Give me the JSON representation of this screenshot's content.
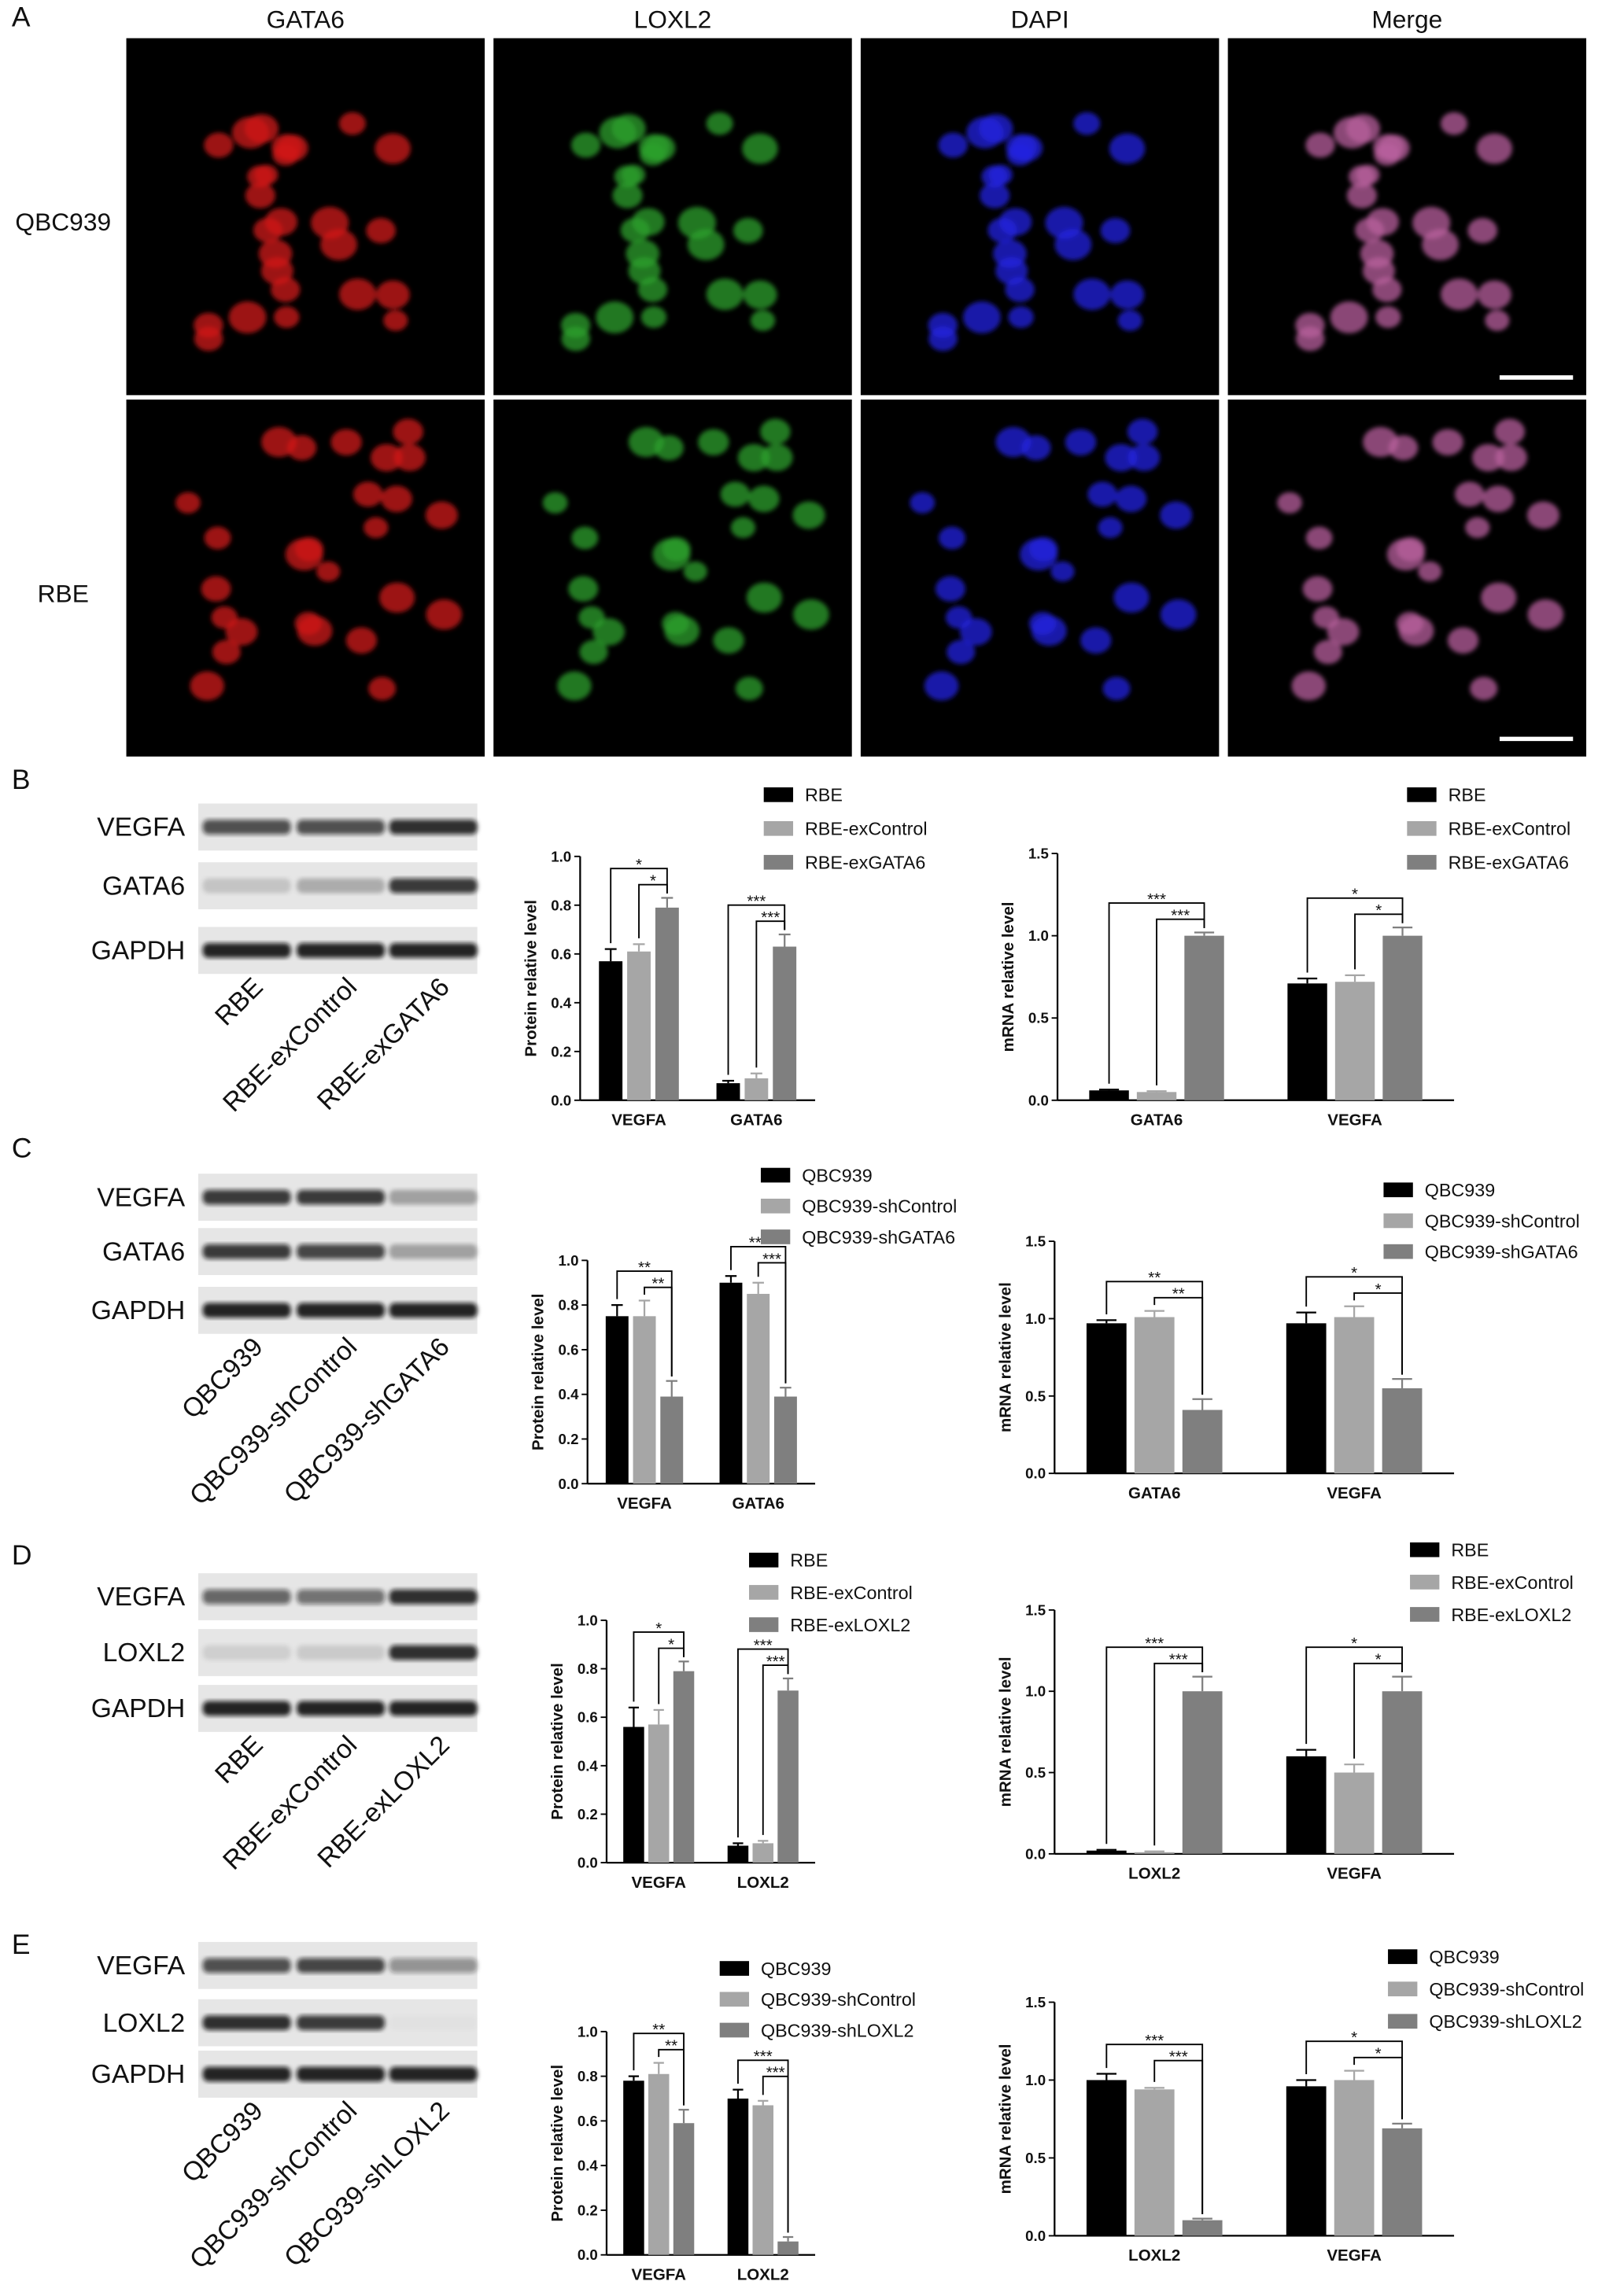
{
  "panel_labels": [
    "A",
    "B",
    "C",
    "D",
    "E"
  ],
  "figure_a": {
    "columns": [
      "GATA6",
      "LOXL2",
      "DAPI",
      "Merge"
    ],
    "rows": [
      "QBC939",
      "RBE"
    ]
  },
  "blots": [
    {
      "rows": [
        "VEGFA",
        "GATA6",
        "GAPDH"
      ],
      "lanes": [
        "RBE",
        "RBE-exControl",
        "RBE-exGATA6"
      ]
    },
    {
      "rows": [
        "VEGFA",
        "GATA6",
        "GAPDH"
      ],
      "lanes": [
        "QBC939",
        "QBC939-shControl",
        "QBC939-shGATA6"
      ]
    },
    {
      "rows": [
        "VEGFA",
        "LOXL2",
        "GAPDH"
      ],
      "lanes": [
        "RBE",
        "RBE-exControl",
        "RBE-exLOXL2"
      ]
    },
    {
      "rows": [
        "VEGFA",
        "LOXL2",
        "GAPDH"
      ],
      "lanes": [
        "QBC939",
        "QBC939-shControl",
        "QBC939-shLOXL2"
      ]
    }
  ],
  "chart_data": [
    {
      "type": "bar",
      "y_label": "Protein relative level",
      "categories": [
        "VEGFA",
        "GATA6"
      ],
      "series": [
        {
          "name": "RBE",
          "color": "#000000",
          "values": [
            0.57,
            0.07
          ],
          "errors": [
            0.05,
            0.01
          ]
        },
        {
          "name": "RBE-exControl",
          "color": "#a6a6a6",
          "values": [
            0.61,
            0.09
          ],
          "errors": [
            0.03,
            0.02
          ]
        },
        {
          "name": "RBE-exGATA6",
          "color": "#7f7f7f",
          "values": [
            0.79,
            0.63
          ],
          "errors": [
            0.04,
            0.05
          ]
        }
      ],
      "ylim": [
        0,
        1.0
      ],
      "yticks": [
        {
          "value": 0,
          "label": "0.0"
        },
        0.2,
        0.4,
        0.6,
        0.8,
        {
          "value": 1,
          "label": "1.0"
        }
      ],
      "significance": [
        [
          "*",
          "*"
        ],
        [
          "***",
          "***"
        ]
      ]
    },
    {
      "type": "bar",
      "y_label": "mRNA relative level",
      "categories": [
        "GATA6",
        "VEGFA"
      ],
      "series": [
        {
          "name": "RBE",
          "color": "#000000",
          "values": [
            0.06,
            0.71
          ],
          "errors": [
            0.005,
            0.03
          ]
        },
        {
          "name": "RBE-exControl",
          "color": "#a6a6a6",
          "values": [
            0.05,
            0.72
          ],
          "errors": [
            0.005,
            0.04
          ]
        },
        {
          "name": "RBE-exGATA6",
          "color": "#7f7f7f",
          "values": [
            1.0,
            1.0
          ],
          "errors": [
            0.02,
            0.05
          ]
        }
      ],
      "ylim": [
        0,
        1.5
      ],
      "yticks": [
        {
          "value": 0,
          "label": "0.0"
        },
        0.5,
        {
          "value": 1,
          "label": "1.0"
        },
        1.5
      ],
      "significance": [
        [
          "***",
          "***"
        ],
        [
          "*",
          "*"
        ]
      ]
    },
    {
      "type": "bar",
      "y_label": "Protein relative level",
      "categories": [
        "VEGFA",
        "GATA6"
      ],
      "series": [
        {
          "name": "QBC939",
          "color": "#000000",
          "values": [
            0.75,
            0.9
          ],
          "errors": [
            0.05,
            0.03
          ]
        },
        {
          "name": "QBC939-shControl",
          "color": "#a6a6a6",
          "values": [
            0.75,
            0.85
          ],
          "errors": [
            0.07,
            0.05
          ]
        },
        {
          "name": "QBC939-shGATA6",
          "color": "#7f7f7f",
          "values": [
            0.39,
            0.39
          ],
          "errors": [
            0.07,
            0.04
          ]
        }
      ],
      "ylim": [
        0,
        1.0
      ],
      "yticks": [
        {
          "value": 0,
          "label": "0.0"
        },
        0.2,
        0.4,
        0.6,
        0.8,
        {
          "value": 1,
          "label": "1.0"
        }
      ],
      "significance": [
        [
          "**",
          "**"
        ],
        [
          "***",
          "***"
        ]
      ]
    },
    {
      "type": "bar",
      "y_label": "mRNA relative level",
      "categories": [
        "GATA6",
        "VEGFA"
      ],
      "series": [
        {
          "name": "QBC939",
          "color": "#000000",
          "values": [
            0.97,
            0.97
          ],
          "errors": [
            0.02,
            0.07
          ]
        },
        {
          "name": "QBC939-shControl",
          "color": "#a6a6a6",
          "values": [
            1.01,
            1.01
          ],
          "errors": [
            0.04,
            0.07
          ]
        },
        {
          "name": "QBC939-shGATA6",
          "color": "#7f7f7f",
          "values": [
            0.41,
            0.55
          ],
          "errors": [
            0.07,
            0.06
          ]
        }
      ],
      "ylim": [
        0,
        1.5
      ],
      "yticks": [
        {
          "value": 0,
          "label": "0.0"
        },
        0.5,
        {
          "value": 1,
          "label": "1.0"
        },
        1.5
      ],
      "significance": [
        [
          "**",
          "**"
        ],
        [
          "*",
          "*"
        ]
      ]
    },
    {
      "type": "bar",
      "y_label": "Protein relative level",
      "categories": [
        "VEGFA",
        "LOXL2"
      ],
      "series": [
        {
          "name": "RBE",
          "color": "#000000",
          "values": [
            0.56,
            0.07
          ],
          "errors": [
            0.08,
            0.01
          ]
        },
        {
          "name": "RBE-exControl",
          "color": "#a6a6a6",
          "values": [
            0.57,
            0.08
          ],
          "errors": [
            0.06,
            0.01
          ]
        },
        {
          "name": "RBE-exLOXL2",
          "color": "#7f7f7f",
          "values": [
            0.79,
            0.71
          ],
          "errors": [
            0.04,
            0.05
          ]
        }
      ],
      "ylim": [
        0,
        1.0
      ],
      "yticks": [
        {
          "value": 0,
          "label": "0.0"
        },
        0.2,
        0.4,
        0.6,
        0.8,
        {
          "value": 1,
          "label": "1.0"
        }
      ],
      "significance": [
        [
          "*",
          "*"
        ],
        [
          "***",
          "***"
        ]
      ]
    },
    {
      "type": "bar",
      "y_label": "mRNA relative level",
      "categories": [
        "LOXL2",
        "VEGFA"
      ],
      "series": [
        {
          "name": "RBE",
          "color": "#000000",
          "values": [
            0.02,
            0.6
          ],
          "errors": [
            0.005,
            0.04
          ]
        },
        {
          "name": "RBE-exControl",
          "color": "#a6a6a6",
          "values": [
            0.01,
            0.5
          ],
          "errors": [
            0.005,
            0.05
          ]
        },
        {
          "name": "RBE-exLOXL2",
          "color": "#7f7f7f",
          "values": [
            1.0,
            1.0
          ],
          "errors": [
            0.09,
            0.09
          ]
        }
      ],
      "ylim": [
        0,
        1.5
      ],
      "yticks": [
        {
          "value": 0,
          "label": "0.0"
        },
        0.5,
        {
          "value": 1,
          "label": "1.0"
        },
        1.5
      ],
      "significance": [
        [
          "***",
          "***"
        ],
        [
          "*",
          "*"
        ]
      ]
    },
    {
      "type": "bar",
      "y_label": "Protein relative level",
      "categories": [
        "VEGFA",
        "LOXL2"
      ],
      "series": [
        {
          "name": "QBC939",
          "color": "#000000",
          "values": [
            0.78,
            0.7
          ],
          "errors": [
            0.02,
            0.04
          ]
        },
        {
          "name": "QBC939-shControl",
          "color": "#a6a6a6",
          "values": [
            0.81,
            0.67
          ],
          "errors": [
            0.05,
            0.02
          ]
        },
        {
          "name": "QBC939-shLOXL2",
          "color": "#7f7f7f",
          "values": [
            0.59,
            0.06
          ],
          "errors": [
            0.06,
            0.02
          ]
        }
      ],
      "ylim": [
        0,
        1.0
      ],
      "yticks": [
        {
          "value": 0,
          "label": "0.0"
        },
        0.2,
        0.4,
        0.6,
        0.8,
        {
          "value": 1,
          "label": "1.0"
        }
      ],
      "significance": [
        [
          "**",
          "**"
        ],
        [
          "***",
          "***"
        ]
      ]
    },
    {
      "type": "bar",
      "y_label": "mRNA relative level",
      "categories": [
        "LOXL2",
        "VEGFA"
      ],
      "series": [
        {
          "name": "QBC939",
          "color": "#000000",
          "values": [
            1.0,
            0.96
          ],
          "errors": [
            0.04,
            0.04
          ]
        },
        {
          "name": "QBC939-shControl",
          "color": "#a6a6a6",
          "values": [
            0.94,
            1.0
          ],
          "errors": [
            0.01,
            0.06
          ]
        },
        {
          "name": "QBC939-shLOXL2",
          "color": "#7f7f7f",
          "values": [
            0.1,
            0.69
          ],
          "errors": [
            0.01,
            0.03
          ]
        }
      ],
      "ylim": [
        0,
        1.5
      ],
      "yticks": [
        {
          "value": 0,
          "label": "0.0"
        },
        0.5,
        {
          "value": 1,
          "label": "1.0"
        },
        1.5
      ],
      "significance": [
        [
          "***",
          "***"
        ],
        [
          "*",
          "*"
        ]
      ]
    }
  ]
}
